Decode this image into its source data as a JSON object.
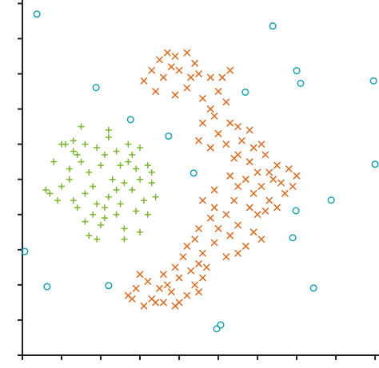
{
  "chart_data": {
    "type": "scatter",
    "xlim": [
      0,
      9.1
    ],
    "ylim": [
      0,
      10.1
    ],
    "xticks": [
      0,
      1,
      2,
      3,
      4,
      5,
      6,
      7,
      8,
      9
    ],
    "yticks": [
      0,
      1,
      2,
      3,
      4,
      5,
      6,
      7,
      8,
      9,
      10
    ],
    "series": [
      {
        "color": "#7ab72f",
        "marker": "plus",
        "x": [
          1.0,
          1.3,
          1.6,
          1.4,
          1.9,
          2.2,
          2.4,
          2.8,
          3.0,
          3.2,
          1.5,
          2.2,
          0.8,
          1.2,
          1.7,
          2.0,
          2.5,
          2.7,
          3.0,
          3.3,
          0.7,
          1.0,
          1.3,
          1.6,
          1.9,
          2.2,
          2.5,
          2.8,
          3.1,
          3.4,
          0.9,
          1.4,
          1.8,
          2.1,
          2.4,
          2.9,
          3.2,
          1.6,
          2.0,
          2.6,
          3.0,
          1.7,
          1.9,
          2.6,
          1.2,
          2.3,
          2.6,
          1.8,
          1.1,
          2.1,
          2.7,
          1.5,
          2.4,
          3.3,
          0.6,
          1.3,
          2.9,
          2.1
        ],
        "values": [
          6.0,
          6.1,
          6.0,
          5.7,
          5.9,
          6.2,
          5.8,
          5.7,
          5.9,
          5.4,
          6.5,
          6.4,
          5.5,
          5.3,
          5.2,
          5.4,
          5.4,
          5.5,
          5.0,
          4.9,
          4.6,
          4.8,
          4.4,
          4.6,
          4.3,
          4.5,
          4.3,
          4.7,
          4.4,
          4.5,
          4.4,
          4.2,
          4.0,
          3.9,
          4.0,
          4.1,
          4.0,
          3.8,
          3.7,
          3.6,
          3.5,
          3.4,
          3.3,
          3.3,
          5.0,
          5.0,
          4.9,
          4.8,
          6.0,
          5.7,
          6.0,
          5.5,
          4.7,
          5.2,
          4.7,
          5.8,
          5.3,
          4.2
        ]
      },
      {
        "color": "#e2691d",
        "marker": "x",
        "x": [
          3.3,
          3.5,
          3.7,
          3.9,
          4.2,
          4.4,
          3.1,
          3.6,
          4.0,
          4.5,
          4.8,
          5.1,
          5.3,
          4.2,
          4.6,
          3.9,
          5.0,
          4.8,
          5.2,
          3.4,
          4.3,
          3.8,
          4.6,
          4.9,
          5.3,
          5.0,
          5.5,
          5.8,
          4.5,
          5.2,
          5.6,
          4.8,
          5.9,
          6.1,
          5.5,
          5.4,
          5.8,
          6.2,
          6.5,
          6.8,
          6.0,
          6.4,
          5.7,
          6.1,
          6.6,
          6.9,
          5.5,
          5.9,
          6.3,
          6.7,
          6.2,
          5.8,
          6.5,
          5.4,
          6.0,
          7.0,
          6.3,
          5.3,
          5.2,
          4.8,
          4.5,
          5.0,
          5.5,
          5.9,
          4.4,
          4.9,
          5.3,
          5.7,
          6.1,
          4.6,
          5.2,
          4.2,
          5.5,
          4.1,
          4.5,
          3.9,
          4.3,
          4.7,
          3.6,
          4.0,
          4.4,
          3.2,
          3.5,
          3.8,
          4.2,
          2.9,
          3.3,
          3.6,
          4.0,
          2.7,
          3.1,
          3.4,
          2.8,
          4.5,
          3.7,
          3.0,
          4.6,
          3.9,
          4.9,
          4.6,
          4.9
        ],
        "values": [
          8.1,
          8.4,
          8.6,
          8.5,
          8.6,
          8.3,
          7.8,
          7.9,
          8.1,
          8.0,
          7.9,
          7.9,
          8.1,
          7.6,
          7.3,
          7.4,
          7.5,
          7.0,
          7.2,
          7.5,
          7.9,
          8.2,
          6.6,
          6.8,
          6.6,
          6.3,
          6.5,
          6.4,
          6.1,
          6.0,
          6.1,
          5.9,
          5.9,
          6.0,
          5.7,
          5.6,
          5.5,
          5.7,
          5.4,
          5.3,
          5.2,
          5.0,
          5.0,
          4.8,
          4.9,
          4.8,
          4.8,
          4.6,
          4.4,
          4.6,
          4.1,
          4.2,
          4.2,
          4.4,
          4.0,
          5.1,
          5.2,
          5.1,
          4.0,
          3.9,
          3.6,
          3.6,
          3.7,
          3.5,
          3.3,
          3.2,
          3.4,
          3.1,
          3.3,
          2.9,
          2.8,
          3.1,
          2.9,
          2.8,
          2.6,
          2.5,
          2.4,
          2.5,
          2.3,
          2.2,
          2.0,
          2.1,
          1.9,
          1.8,
          1.7,
          1.9,
          1.6,
          1.5,
          1.5,
          1.7,
          1.4,
          1.5,
          1.6,
          1.8,
          2.0,
          2.3,
          2.2,
          1.4,
          4.7,
          4.4,
          4.2
        ]
      },
      {
        "color": "#1aa3b5",
        "marker": "circle",
        "x": [
          0.37,
          6.39,
          1.88,
          7.0,
          7.1,
          8.96,
          5.69,
          2.76,
          3.73,
          9.0,
          4.37,
          7.88,
          6.98,
          6.9,
          0.06,
          0.63,
          2.2,
          7.43,
          5.06,
          4.96
        ],
        "values": [
          9.7,
          9.36,
          7.61,
          8.09,
          7.73,
          7.8,
          7.48,
          6.7,
          6.23,
          5.43,
          5.18,
          4.41,
          4.11,
          3.34,
          2.95,
          1.95,
          1.98,
          1.91,
          0.86,
          0.75
        ]
      }
    ]
  }
}
